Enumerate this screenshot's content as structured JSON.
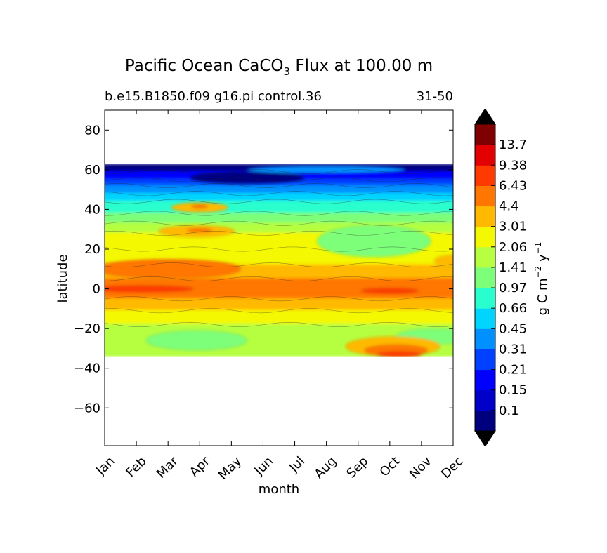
{
  "chart_data": {
    "type": "heatmap",
    "title_main": "Pacific Ocean CaCO",
    "title_sub": "3",
    "title_rest": " Flux at 100.00 m",
    "subtitle_left": "b.e15.B1850.f09 g16.pi control.36",
    "subtitle_right": "31-50",
    "xlabel": "month",
    "ylabel": "latitude",
    "x_categories": [
      "Jan",
      "Feb",
      "Mar",
      "Apr",
      "May",
      "Jun",
      "Jul",
      "Aug",
      "Sep",
      "Oct",
      "Nov",
      "Dec"
    ],
    "y_ticks": [
      80,
      60,
      40,
      20,
      0,
      -20,
      -40,
      -60
    ],
    "y_tick_labels": [
      "80",
      "60",
      "40",
      "20",
      "0",
      "−20",
      "−40",
      "−60"
    ],
    "ylim": [
      -79,
      90
    ],
    "data_lat_range": [
      -34,
      63
    ],
    "colorbar": {
      "label_main": "g C m",
      "label_exp1": "−2",
      "label_mid": " y",
      "label_exp2": "−1",
      "levels": [
        "0.1",
        "0.15",
        "0.21",
        "0.31",
        "0.45",
        "0.66",
        "0.97",
        "1.41",
        "2.06",
        "3.01",
        "4.4",
        "6.43",
        "9.38",
        "13.7"
      ],
      "colors": [
        "#00007f",
        "#0000c8",
        "#0000ff",
        "#0040ff",
        "#0090ff",
        "#00d4ff",
        "#29ffce",
        "#7dff7a",
        "#b6ff41",
        "#f4f802",
        "#ffb900",
        "#ff7600",
        "#ff3a00",
        "#e30000",
        "#7f0000"
      ],
      "extend_low_color": "#000000",
      "extend_high_color": "#000000"
    },
    "bands": [
      {
        "lat_top": 63,
        "lat_bottom": 59,
        "level": 0
      },
      {
        "lat_top": 59,
        "lat_bottom": 55,
        "level": 2
      },
      {
        "lat_top": 55,
        "lat_bottom": 52,
        "level": 3
      },
      {
        "lat_top": 52,
        "lat_bottom": 48,
        "level": 4
      },
      {
        "lat_top": 48,
        "lat_bottom": 44,
        "level": 5
      },
      {
        "lat_top": 44,
        "lat_bottom": 38,
        "level": 6
      },
      {
        "lat_top": 38,
        "lat_bottom": 33,
        "level": 7
      },
      {
        "lat_top": 33,
        "lat_bottom": 28,
        "level": 8
      },
      {
        "lat_top": 28,
        "lat_bottom": 20,
        "level": 9
      },
      {
        "lat_top": 20,
        "lat_bottom": 12,
        "level": 9
      },
      {
        "lat_top": 12,
        "lat_bottom": 5,
        "level": 10
      },
      {
        "lat_top": 5,
        "lat_bottom": -5,
        "level": 11
      },
      {
        "lat_top": -5,
        "lat_bottom": -11,
        "level": 10
      },
      {
        "lat_top": -11,
        "lat_bottom": -18,
        "level": 9
      },
      {
        "lat_top": -18,
        "lat_bottom": -34,
        "level": 8
      }
    ],
    "features": [
      {
        "month": 8.5,
        "lat": 24,
        "rx_months": 1.8,
        "ry_lat": 8,
        "level": 7
      },
      {
        "month": 2.9,
        "lat": -26,
        "rx_months": 1.6,
        "ry_lat": 5,
        "level": 7
      },
      {
        "month": 10.4,
        "lat": -24,
        "rx_months": 1.2,
        "ry_lat": 4,
        "level": 7
      },
      {
        "month": 2.9,
        "lat": 29,
        "rx_months": 1.2,
        "ry_lat": 3,
        "level": 10
      },
      {
        "month": 3.0,
        "lat": 29.5,
        "rx_months": 0.4,
        "ry_lat": 1,
        "level": 11
      },
      {
        "month": 3.0,
        "lat": 41,
        "rx_months": 0.9,
        "ry_lat": 2.5,
        "level": 10
      },
      {
        "month": 3.0,
        "lat": 41.5,
        "rx_months": 0.25,
        "ry_lat": 1,
        "level": 11
      },
      {
        "month": 1.2,
        "lat": 0,
        "rx_months": 1.6,
        "ry_lat": 1.6,
        "level": 12
      },
      {
        "month": 9.0,
        "lat": -1,
        "rx_months": 0.9,
        "ry_lat": 1.3,
        "level": 12
      },
      {
        "month": 2.0,
        "lat": 10,
        "rx_months": 2.3,
        "ry_lat": 5,
        "level": 11
      },
      {
        "month": 9.1,
        "lat": -29,
        "rx_months": 1.5,
        "ry_lat": 5,
        "level": 10
      },
      {
        "month": 9.2,
        "lat": -31,
        "rx_months": 1.0,
        "ry_lat": 3,
        "level": 11
      },
      {
        "month": 9.3,
        "lat": -33,
        "rx_months": 0.7,
        "ry_lat": 1.5,
        "level": 12
      },
      {
        "month": 4.5,
        "lat": 56,
        "rx_months": 1.8,
        "ry_lat": 3,
        "level": 0
      },
      {
        "month": 7.0,
        "lat": 60,
        "rx_months": 2.5,
        "ry_lat": 2,
        "level": 4
      },
      {
        "month": 11.0,
        "lat": 14,
        "rx_months": 0.6,
        "ry_lat": 3,
        "level": 10
      }
    ]
  }
}
